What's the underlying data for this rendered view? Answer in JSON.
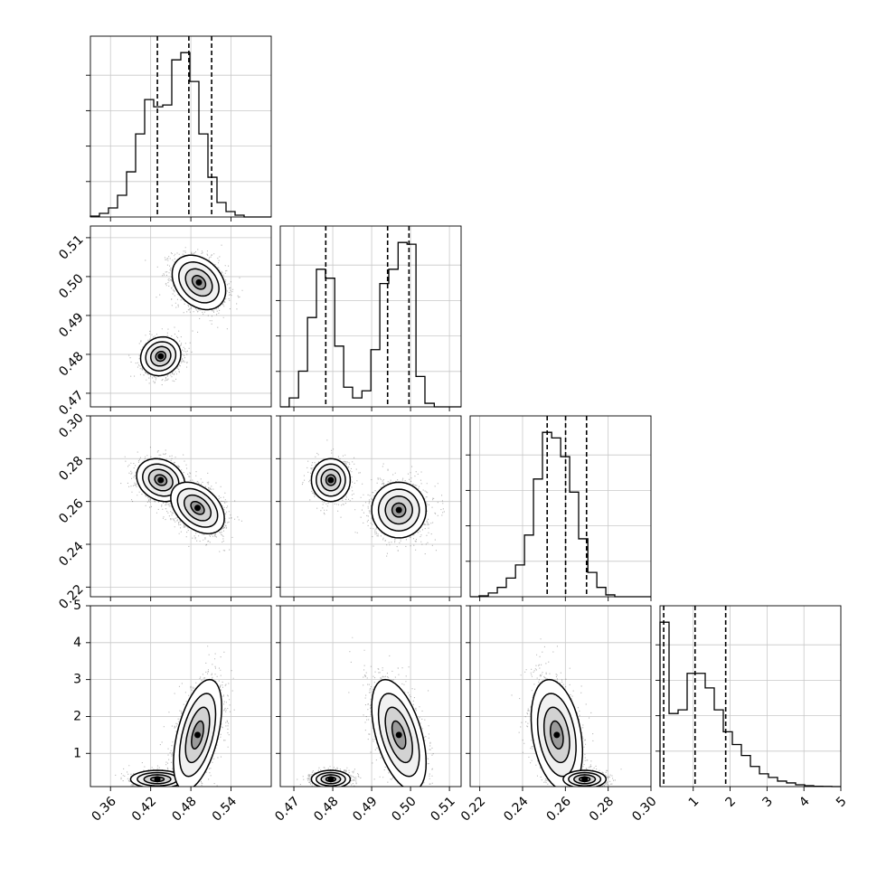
{
  "chart_data": {
    "type": "corner",
    "n_params": 4,
    "grid": true,
    "params": [
      {
        "index": 0,
        "range": [
          0.33,
          0.6
        ],
        "ticks": [
          0.36,
          0.42,
          0.48,
          0.54
        ],
        "tick_labels": [
          "0.36",
          "0.42",
          "0.48",
          "0.54"
        ]
      },
      {
        "index": 1,
        "range": [
          0.4665,
          0.513
        ],
        "ticks": [
          0.47,
          0.48,
          0.49,
          0.5,
          0.51
        ],
        "tick_labels": [
          "0.47",
          "0.48",
          "0.49",
          "0.50",
          "0.51"
        ]
      },
      {
        "index": 2,
        "range": [
          0.2155,
          0.3
        ],
        "ticks": [
          0.22,
          0.24,
          0.26,
          0.28,
          0.3
        ],
        "tick_labels": [
          "0.22",
          "0.24",
          "0.26",
          "0.28",
          "0.30"
        ]
      },
      {
        "index": 3,
        "range": [
          0.1,
          5.0
        ],
        "ticks": [
          1,
          2,
          3,
          4,
          5
        ],
        "tick_labels": [
          "1",
          "2",
          "3",
          "4",
          "5"
        ]
      }
    ],
    "histograms": [
      {
        "param": 0,
        "bin_edges": [
          0.33,
          0.3435,
          0.357,
          0.3705,
          0.384,
          0.3975,
          0.411,
          0.4245,
          0.438,
          0.4515,
          0.465,
          0.4785,
          0.492,
          0.5055,
          0.519,
          0.5325,
          0.546,
          0.5595,
          0.573,
          0.5865,
          0.6
        ],
        "counts": [
          0.005,
          0.02,
          0.05,
          0.12,
          0.25,
          0.46,
          0.65,
          0.61,
          0.62,
          0.87,
          0.91,
          0.75,
          0.46,
          0.22,
          0.08,
          0.03,
          0.01,
          0.0,
          0.0,
          0.0
        ],
        "quantiles": [
          0.43,
          0.477,
          0.511
        ]
      },
      {
        "param": 1,
        "bin_edges": [
          0.4665,
          0.4688,
          0.4712,
          0.4735,
          0.4758,
          0.4781,
          0.4805,
          0.4828,
          0.4851,
          0.4875,
          0.4898,
          0.4921,
          0.4944,
          0.4968,
          0.4991,
          0.5014,
          0.5037,
          0.5061,
          0.5084,
          0.5107,
          0.513
        ],
        "counts": [
          0.0,
          0.05,
          0.2,
          0.5,
          0.77,
          0.72,
          0.34,
          0.11,
          0.05,
          0.09,
          0.32,
          0.69,
          0.77,
          0.92,
          0.91,
          0.17,
          0.02,
          0.0,
          0.0,
          0.0
        ],
        "quantiles": [
          0.4782,
          0.4941,
          0.4996
        ]
      },
      {
        "param": 2,
        "bin_edges": [
          0.2155,
          0.2197,
          0.224,
          0.2282,
          0.2324,
          0.2367,
          0.2409,
          0.2451,
          0.2493,
          0.2536,
          0.2578,
          0.262,
          0.2662,
          0.2705,
          0.2747,
          0.2789,
          0.2831,
          0.2874,
          0.2916,
          0.2958,
          0.3
        ],
        "counts": [
          0.0,
          0.005,
          0.02,
          0.05,
          0.1,
          0.17,
          0.33,
          0.63,
          0.88,
          0.85,
          0.75,
          0.56,
          0.31,
          0.13,
          0.05,
          0.01,
          0.0,
          0.0,
          0.0,
          0.0
        ],
        "quantiles": [
          0.2515,
          0.2601,
          0.2699
        ]
      },
      {
        "param": 3,
        "bin_edges": [
          0.1,
          0.345,
          0.59,
          0.835,
          1.08,
          1.325,
          1.57,
          1.815,
          2.06,
          2.305,
          2.55,
          2.795,
          3.04,
          3.285,
          3.53,
          3.775,
          4.02,
          4.265,
          4.51,
          4.755,
          5.0
        ],
        "counts": [
          0.9,
          0.4,
          0.42,
          0.62,
          0.62,
          0.54,
          0.42,
          0.3,
          0.23,
          0.17,
          0.11,
          0.07,
          0.05,
          0.03,
          0.02,
          0.01,
          0.005,
          0.002,
          0.001,
          0.0
        ],
        "quantiles": [
          0.2,
          1.05,
          1.88
        ]
      }
    ],
    "scatter_panels": [
      {
        "x": 0,
        "y": 1,
        "modes": [
          {
            "cx": 0.492,
            "cy": 0.4985,
            "sx": 0.02,
            "sy": 0.0035,
            "rho": -0.3,
            "w": 0.62
          },
          {
            "cx": 0.435,
            "cy": 0.4795,
            "sx": 0.015,
            "sy": 0.0025,
            "rho": 0.1,
            "w": 0.38
          }
        ]
      },
      {
        "x": 0,
        "y": 2,
        "modes": [
          {
            "cx": 0.435,
            "cy": 0.27,
            "sx": 0.018,
            "sy": 0.005,
            "rho": -0.2,
            "w": 0.38
          },
          {
            "cx": 0.49,
            "cy": 0.257,
            "sx": 0.02,
            "sy": 0.006,
            "rho": -0.4,
            "w": 0.62
          }
        ]
      },
      {
        "x": 1,
        "y": 2,
        "modes": [
          {
            "cx": 0.4795,
            "cy": 0.27,
            "sx": 0.0025,
            "sy": 0.005,
            "rho": 0.0,
            "w": 0.38
          },
          {
            "cx": 0.497,
            "cy": 0.256,
            "sx": 0.0035,
            "sy": 0.0065,
            "rho": 0.0,
            "w": 0.62
          }
        ]
      },
      {
        "x": 0,
        "y": 3,
        "modes": [
          {
            "cx": 0.43,
            "cy": 0.3,
            "sx": 0.02,
            "sy": 0.12,
            "rho": 0.0,
            "w": 0.38
          },
          {
            "cx": 0.49,
            "cy": 1.5,
            "sx": 0.018,
            "sy": 0.75,
            "rho": 0.5,
            "w": 0.62
          }
        ]
      },
      {
        "x": 1,
        "y": 3,
        "modes": [
          {
            "cx": 0.4795,
            "cy": 0.3,
            "sx": 0.0025,
            "sy": 0.12,
            "rho": 0.0,
            "w": 0.38
          },
          {
            "cx": 0.497,
            "cy": 1.5,
            "sx": 0.0035,
            "sy": 0.75,
            "rho": -0.5,
            "w": 0.62
          }
        ]
      },
      {
        "x": 2,
        "y": 3,
        "modes": [
          {
            "cx": 0.256,
            "cy": 1.5,
            "sx": 0.006,
            "sy": 0.75,
            "rho": -0.3,
            "w": 0.62
          },
          {
            "cx": 0.269,
            "cy": 0.3,
            "sx": 0.005,
            "sy": 0.12,
            "rho": 0.0,
            "w": 0.38
          }
        ]
      }
    ]
  }
}
